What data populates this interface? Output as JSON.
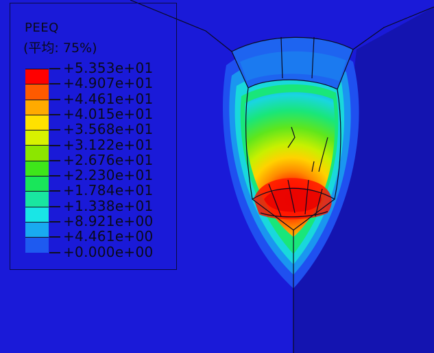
{
  "legend": {
    "variable": "PEEQ",
    "averaging": "(平均: 75%)",
    "levels": [
      "+5.353e+01",
      "+4.907e+01",
      "+4.461e+01",
      "+4.015e+01",
      "+3.568e+01",
      "+3.122e+01",
      "+2.676e+01",
      "+2.230e+01",
      "+1.784e+01",
      "+1.338e+01",
      "+8.921e+00",
      "+4.461e+00",
      "+0.000e+00"
    ],
    "colors": [
      "#ff0000",
      "#ff5a00",
      "#ffaa00",
      "#ffe100",
      "#d8f200",
      "#8ce600",
      "#3ee61a",
      "#19e65a",
      "#19e6a0",
      "#19e6e6",
      "#19aaf0",
      "#1e5af0"
    ]
  },
  "background_color": "#1a1ad8"
}
